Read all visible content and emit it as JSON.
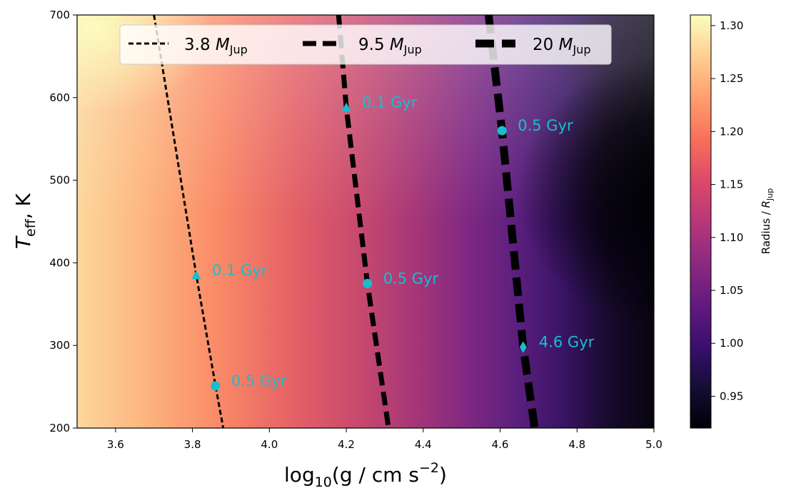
{
  "chart_data": {
    "type": "heatmap",
    "title": "",
    "xlabel": {
      "base": "log",
      "sub": "10",
      "rest": "(g / cm s",
      "sup": "−2",
      "end": ")"
    },
    "ylabel": {
      "main": "T",
      "sub": "eff",
      "rest": ", K"
    },
    "xlim": [
      3.5,
      5.0
    ],
    "ylim": [
      200,
      700
    ],
    "x_ticks": [
      "3.6",
      "3.8",
      "4.0",
      "4.2",
      "4.4",
      "4.6",
      "4.8",
      "5.0"
    ],
    "y_ticks": [
      "200",
      "300",
      "400",
      "500",
      "600",
      "700"
    ],
    "heatmap": {
      "colormap": "magma",
      "vmin": 0.92,
      "vmax": 1.31,
      "colorbar_label": {
        "pre": "Radius / ",
        "var": "R",
        "sub": "Jup"
      },
      "colorbar_ticks": [
        "0.95",
        "1.00",
        "1.05",
        "1.10",
        "1.15",
        "1.20",
        "1.25",
        "1.30"
      ]
    },
    "series": [
      {
        "name": {
          "value": "3.8",
          "var": "M",
          "sub": "Jup"
        },
        "x": [
          3.7,
          3.81,
          3.86,
          3.88
        ],
        "y": [
          700,
          385,
          251,
          200
        ],
        "color": "#000000"
      },
      {
        "name": {
          "value": "9.5",
          "var": "M",
          "sub": "Jup"
        },
        "x": [
          4.18,
          4.2,
          4.255,
          4.31
        ],
        "y": [
          700,
          588,
          375,
          200
        ],
        "color": "#000000"
      },
      {
        "name": {
          "value": "20",
          "var": "M",
          "sub": "Jup"
        },
        "x": [
          4.57,
          4.605,
          4.66,
          4.69
        ],
        "y": [
          700,
          560,
          298,
          200
        ],
        "color": "#000000"
      }
    ],
    "markers": [
      {
        "x": 3.81,
        "y": 385,
        "shape": "triangle",
        "label": "0.1 Gyr"
      },
      {
        "x": 3.86,
        "y": 251,
        "shape": "circle",
        "label": "0.5 Gyr"
      },
      {
        "x": 4.2,
        "y": 588,
        "shape": "triangle",
        "label": "0.1 Gyr"
      },
      {
        "x": 4.255,
        "y": 375,
        "shape": "circle",
        "label": "0.5 Gyr"
      },
      {
        "x": 4.605,
        "y": 560,
        "shape": "circle",
        "label": "0.5 Gyr"
      },
      {
        "x": 4.66,
        "y": 298,
        "shape": "diamond",
        "label": "4.6 Gyr"
      }
    ],
    "marker_color": "#17becf",
    "legend_position": "top"
  }
}
